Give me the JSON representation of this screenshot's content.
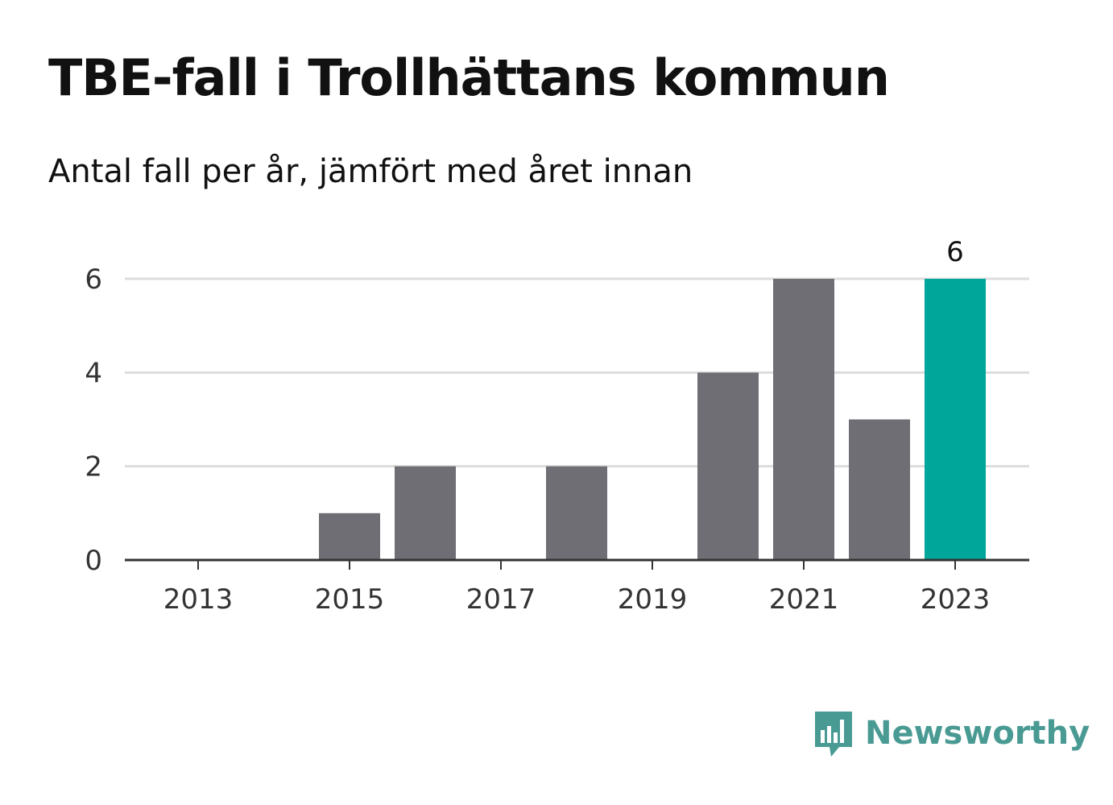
{
  "title": "TBE-fall i Trollhättans kommun",
  "subtitle": "Antal fall per år, jämfört med året innan",
  "brand": {
    "name": "Newsworthy",
    "color": "#4a9a94",
    "icon": "bar-chart-speech-bubble-icon"
  },
  "colors": {
    "bar": "#6f6e75",
    "highlight": "#00a69a",
    "grid": "#dddddd",
    "axis": "#333333",
    "text": "#333333"
  },
  "chart_data": {
    "type": "bar",
    "x": [
      2013,
      2014,
      2015,
      2016,
      2017,
      2018,
      2019,
      2020,
      2021,
      2022,
      2023
    ],
    "values": [
      0,
      0,
      1,
      2,
      0,
      2,
      0,
      4,
      6,
      3,
      6
    ],
    "highlight": 2023,
    "data_labels": [
      {
        "x": 2023,
        "label": "6"
      }
    ],
    "x_ticks": [
      "2013",
      "2015",
      "2017",
      "2019",
      "2021",
      "2023"
    ],
    "y_ticks": [
      "0",
      "2",
      "4",
      "6"
    ],
    "ylim": [
      0,
      6
    ],
    "grid": true,
    "legend": "none",
    "xlabel": "",
    "ylabel": ""
  }
}
